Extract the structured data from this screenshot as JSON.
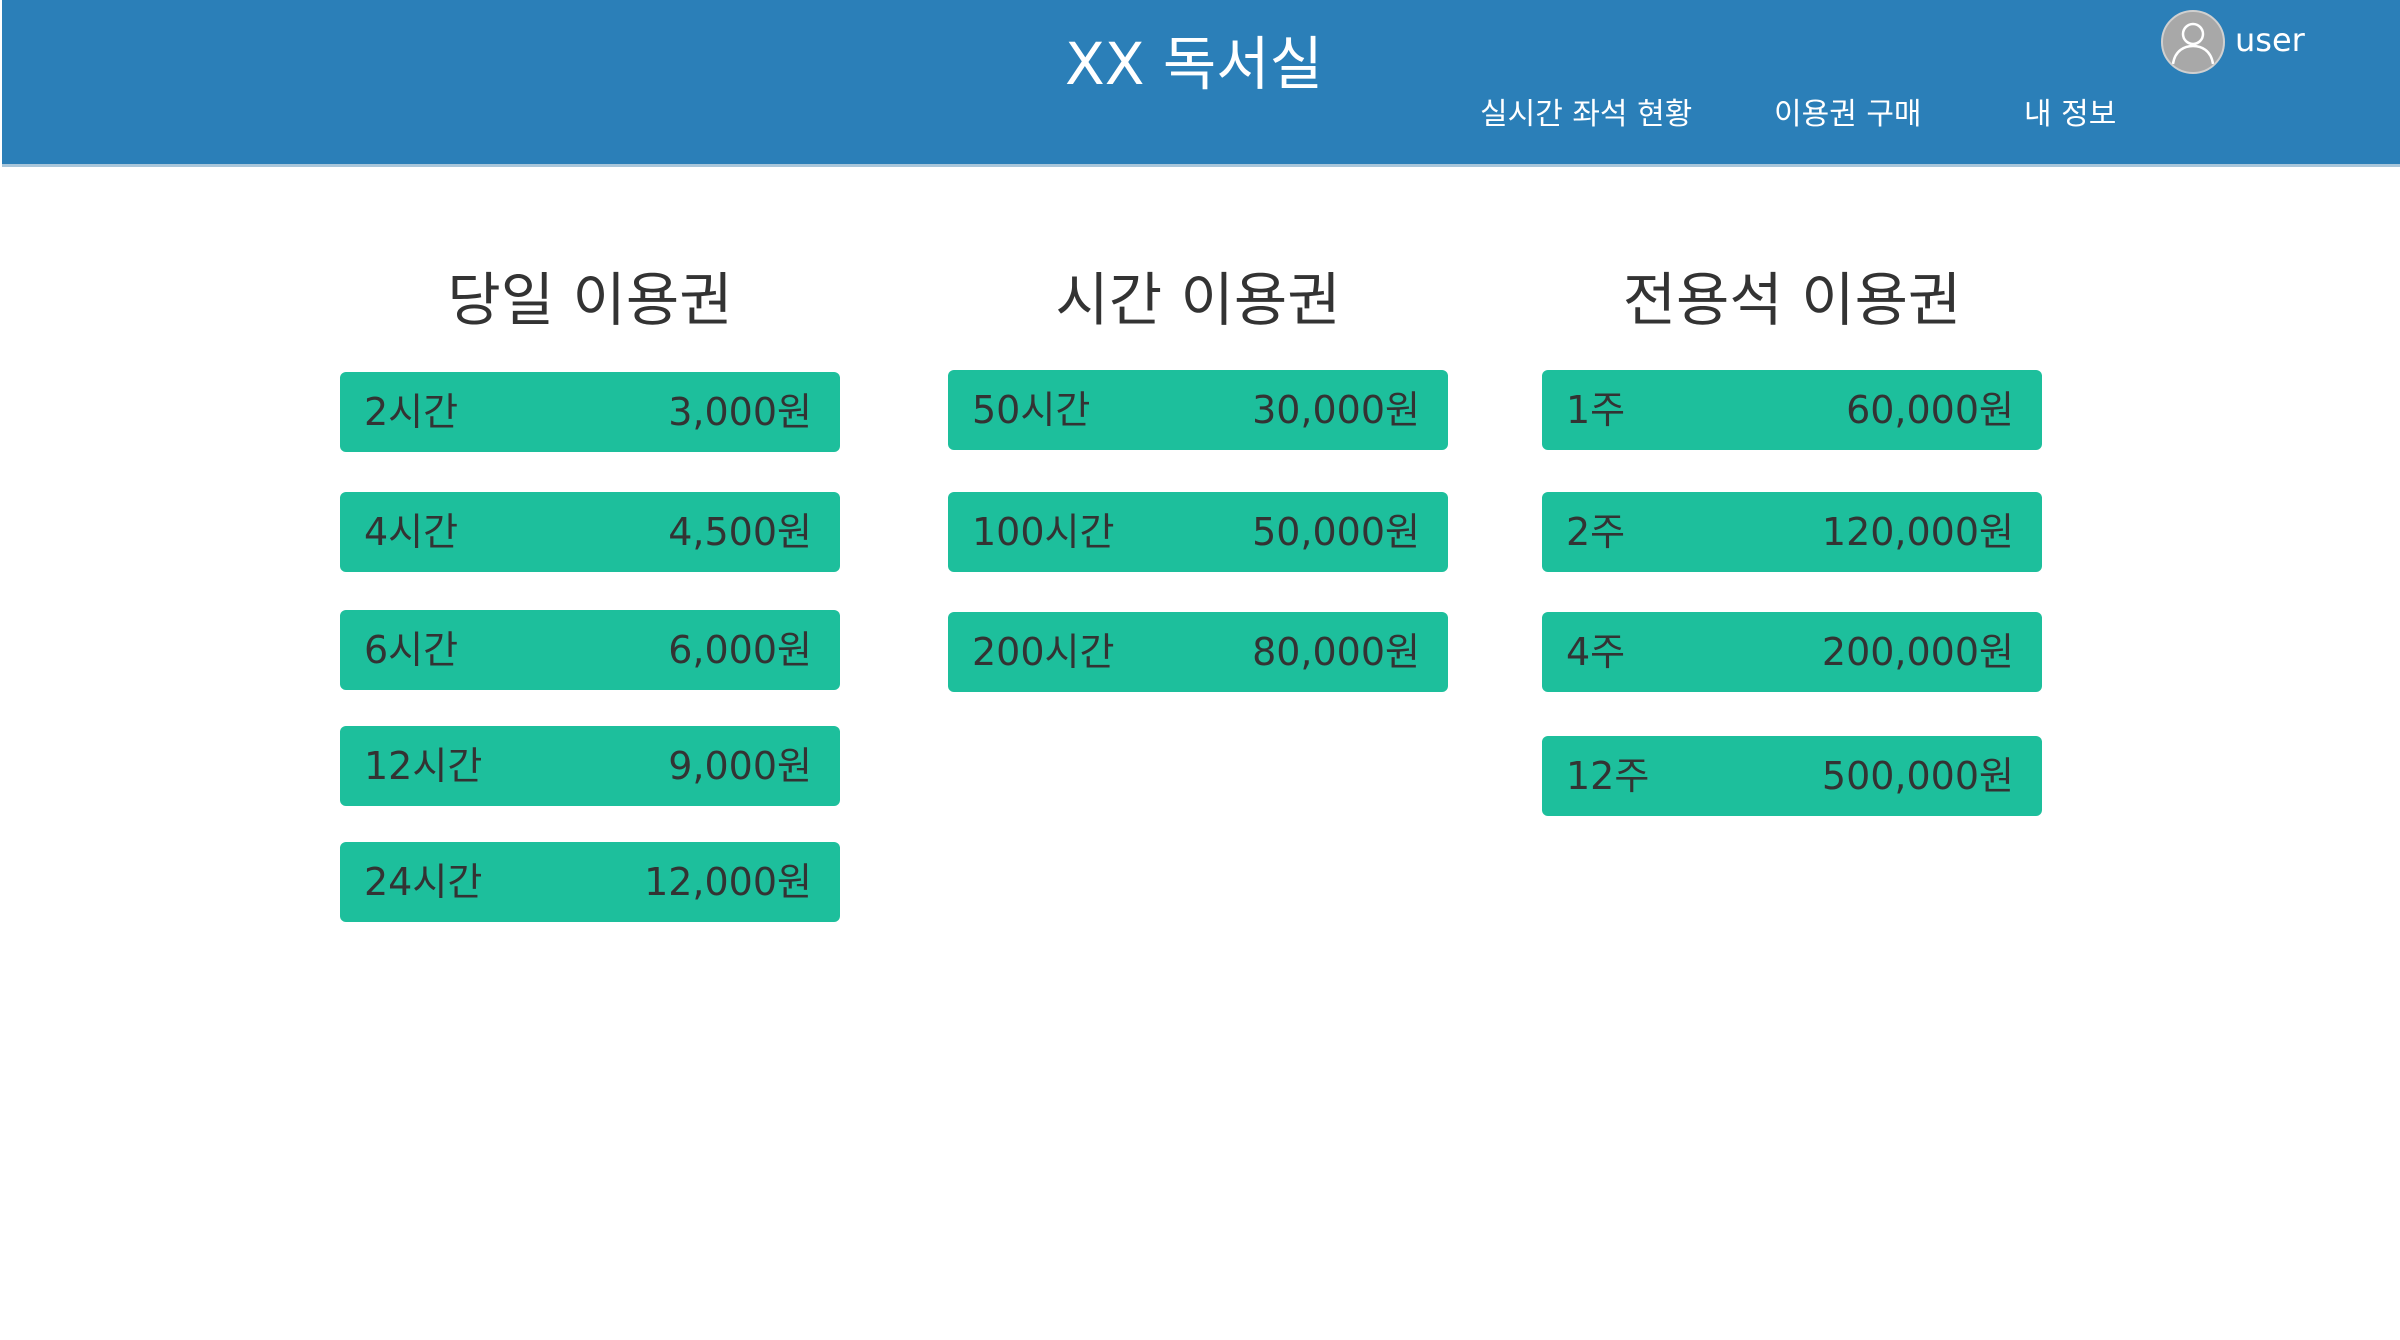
{
  "header": {
    "title": "XX 독서실",
    "nav": {
      "realtime": "실시간 좌석 현황",
      "purchase": "이용권 구매",
      "myinfo": "내 정보"
    },
    "user": {
      "name": "user",
      "avatar_icon": "user-avatar-icon"
    },
    "background_color": "#2b7fb8"
  },
  "accent_color": "#1dbf9c",
  "columns": [
    {
      "title": "당일 이용권",
      "passes": [
        {
          "name": "2시간",
          "price": "3,000원"
        },
        {
          "name": "4시간",
          "price": "4,500원"
        },
        {
          "name": "6시간",
          "price": "6,000원"
        },
        {
          "name": "12시간",
          "price": "9,000원"
        },
        {
          "name": "24시간",
          "price": "12,000원"
        }
      ]
    },
    {
      "title": "시간 이용권",
      "passes": [
        {
          "name": "50시간",
          "price": "30,000원"
        },
        {
          "name": "100시간",
          "price": "50,000원"
        },
        {
          "name": "200시간",
          "price": "80,000원"
        }
      ]
    },
    {
      "title": "전용석 이용권",
      "passes": [
        {
          "name": "1주",
          "price": "60,000원"
        },
        {
          "name": "2주",
          "price": "120,000원"
        },
        {
          "name": "4주",
          "price": "200,000원"
        },
        {
          "name": "12주",
          "price": "500,000원"
        }
      ]
    }
  ]
}
